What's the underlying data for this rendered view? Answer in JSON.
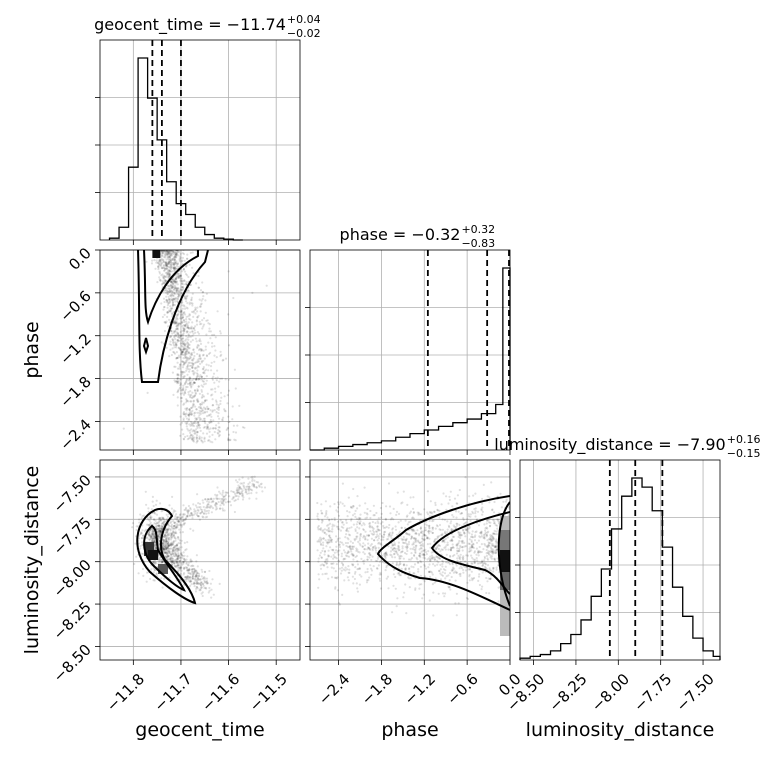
{
  "chart_data": {
    "type": "corner",
    "parameters": [
      {
        "id": "geocent_time",
        "label": "geocent_time",
        "range": [
          -11.87,
          -11.45
        ],
        "ticks": [
          -11.8,
          -11.7,
          -11.6,
          -11.5
        ],
        "tick_labels": [
          "−11.8",
          "−11.7",
          "−11.6",
          "−11.5"
        ],
        "title_main": "geocent_time = −11.74",
        "title_up": "+0.04",
        "title_down": "−0.02",
        "quantiles": [
          -11.76,
          -11.74,
          -11.7
        ],
        "hist_edges": [
          -11.85,
          -11.83,
          -11.81,
          -11.79,
          -11.77,
          -11.75,
          -11.73,
          -11.71,
          -11.69,
          -11.67,
          -11.65,
          -11.63,
          -11.61,
          -11.59,
          -11.57
        ],
        "hist_counts": [
          0.01,
          0.07,
          0.4,
          1.0,
          0.78,
          0.55,
          0.32,
          0.2,
          0.14,
          0.07,
          0.03,
          0.01,
          0.005,
          0.0
        ]
      },
      {
        "id": "phase",
        "label": "phase",
        "range": [
          -2.8,
          0.0
        ],
        "ticks": [
          -2.4,
          -1.8,
          -1.2,
          -0.6,
          0.0
        ],
        "tick_labels": [
          "−2.4",
          "−1.8",
          "−1.2",
          "−0.6",
          "0.0"
        ],
        "title_main": "phase = −0.32",
        "title_up": "+0.32",
        "title_down": "−0.83",
        "quantiles": [
          -1.15,
          -0.32,
          0.0
        ],
        "hist_edges": [
          -2.8,
          -2.6,
          -2.4,
          -2.2,
          -2.0,
          -1.8,
          -1.6,
          -1.4,
          -1.2,
          -1.0,
          -0.8,
          -0.6,
          -0.4,
          -0.2,
          -0.1,
          0.0
        ],
        "hist_counts": [
          0.0,
          0.01,
          0.02,
          0.03,
          0.04,
          0.05,
          0.07,
          0.09,
          0.11,
          0.13,
          0.15,
          0.17,
          0.2,
          0.25,
          1.0
        ]
      },
      {
        "id": "luminosity_distance",
        "label": "luminosity_distance",
        "range": [
          -8.58,
          -7.4
        ],
        "ticks": [
          -8.5,
          -8.25,
          -8.0,
          -7.75,
          -7.5
        ],
        "tick_labels": [
          "−8.50",
          "−8.25",
          "−8.00",
          "−7.75",
          "−7.50"
        ],
        "title_main": "luminosity_distance = −7.90",
        "title_up": "+0.16",
        "title_down": "−0.15",
        "quantiles": [
          -8.05,
          -7.9,
          -7.74
        ],
        "hist_edges": [
          -8.58,
          -8.52,
          -8.46,
          -8.4,
          -8.34,
          -8.28,
          -8.22,
          -8.16,
          -8.1,
          -8.04,
          -7.98,
          -7.92,
          -7.86,
          -7.8,
          -7.74,
          -7.68,
          -7.62,
          -7.56,
          -7.5,
          -7.44,
          -7.4
        ],
        "hist_counts": [
          0.01,
          0.02,
          0.03,
          0.05,
          0.09,
          0.14,
          0.22,
          0.35,
          0.5,
          0.72,
          0.9,
          1.0,
          0.95,
          0.82,
          0.62,
          0.4,
          0.24,
          0.12,
          0.05,
          0.02
        ]
      }
    ],
    "grid": true,
    "contour_levels": [
      0.39,
      0.86
    ]
  }
}
